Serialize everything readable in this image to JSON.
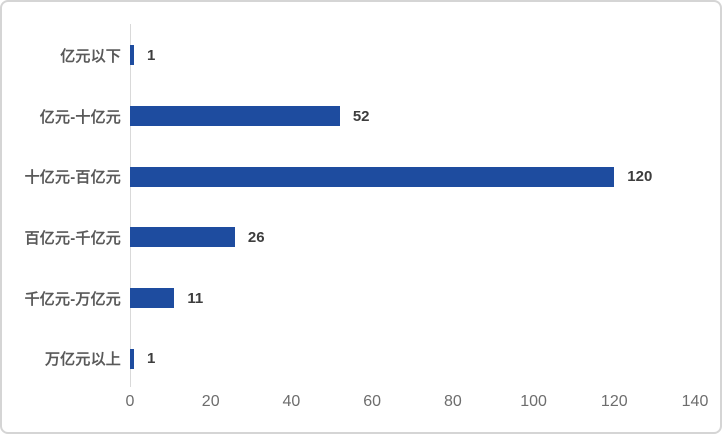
{
  "chart_data": {
    "type": "bar",
    "orientation": "horizontal",
    "title": "",
    "xlabel": "",
    "ylabel": "",
    "categories": [
      "亿元以下",
      "亿元-十亿元",
      "十亿元-百亿元",
      "百亿元-千亿元",
      "千亿元-万亿元",
      "万亿元以上"
    ],
    "values": [
      1,
      52,
      120,
      26,
      11,
      1
    ],
    "x_ticks": [
      0,
      20,
      40,
      60,
      80,
      100,
      120,
      140
    ],
    "xlim": [
      0,
      140
    ],
    "grid": false,
    "legend": false,
    "value_labels_shown": true,
    "bar_color": "#1e4c9f",
    "axis_line_color": "#d9d9d9",
    "category_label_color": "#595959",
    "value_label_color": "#3d3d3d",
    "tick_label_color": "#6d6d6d",
    "frame_border_color": "#d5d5d5"
  }
}
